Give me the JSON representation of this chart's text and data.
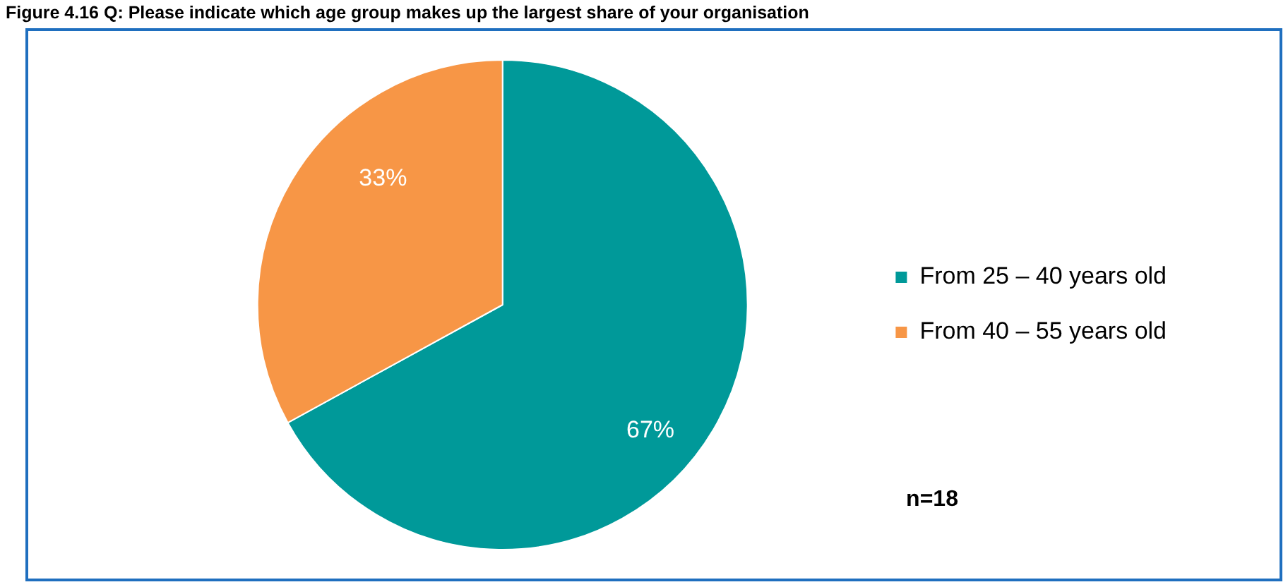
{
  "chart_data": {
    "type": "pie",
    "title": "Figure 4.16 Q: Please indicate which age group makes up the largest share of your organisation",
    "categories": [
      "From 25 – 40 years old",
      "From 40 – 55 years old"
    ],
    "values": [
      67,
      33
    ],
    "colors": [
      "#009999",
      "#f79646"
    ],
    "value_labels": [
      "67%",
      "33%"
    ],
    "legend": "right",
    "annotations": [
      "n=18"
    ]
  }
}
